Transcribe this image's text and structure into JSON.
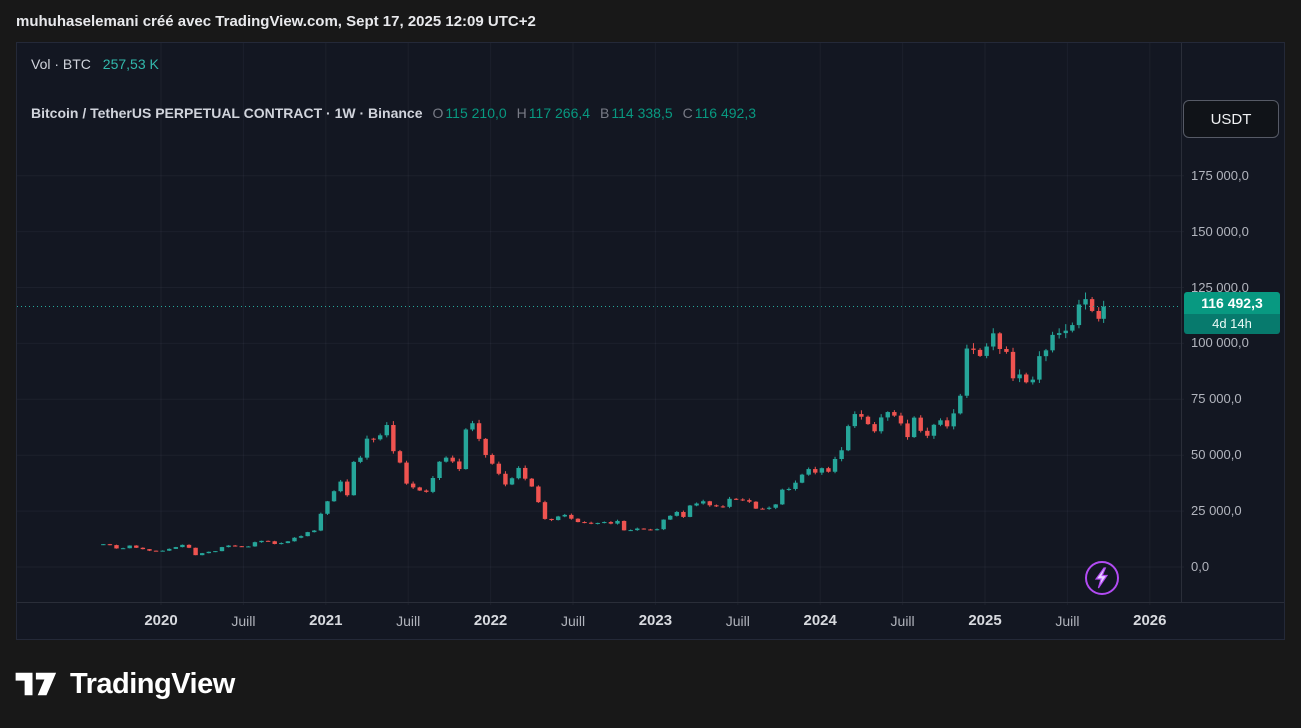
{
  "colors": {
    "up": "#26a69a",
    "down": "#ef5350",
    "accent_teal": "#089981",
    "panel_bg": "#131722",
    "outer_bg": "#181818",
    "axis_text": "#b2b5be",
    "volume_value": "#32b8ac",
    "badge": "#089981",
    "boost_purple": "#b24bf3"
  },
  "header": {
    "caption": "muhuhaselemani créé avec TradingView.com, Sept 17, 2025 12:09 UTC+2"
  },
  "legend": {
    "volume_label": "Vol · BTC",
    "volume_value": "257,53 K",
    "symbol_title": "Bitcoin / TetherUS PERPETUAL CONTRACT · 1W · Binance",
    "ohlc": [
      {
        "key": "O",
        "value": "115 210,0"
      },
      {
        "key": "H",
        "value": "117 266,4"
      },
      {
        "key": "B",
        "value": "114 338,5"
      },
      {
        "key": "C",
        "value": "116 492,3"
      }
    ]
  },
  "currency_button": {
    "label": "USDT"
  },
  "price_badge": {
    "price": "116 492,3",
    "countdown": "4d 14h"
  },
  "price_axis": {
    "labels": [
      {
        "label": "175 000,0",
        "value": 175000
      },
      {
        "label": "150 000,0",
        "value": 150000
      },
      {
        "label": "125 000,0",
        "value": 125000
      },
      {
        "label": "100 000,0",
        "value": 100000
      },
      {
        "label": "75 000,0",
        "value": 75000
      },
      {
        "label": "50 000,0",
        "value": 50000
      },
      {
        "label": "25 000,0",
        "value": 25000
      },
      {
        "label": "0,0",
        "value": 0
      }
    ]
  },
  "time_axis": {
    "ticks": [
      {
        "label": "2020",
        "t": 2020,
        "major": true
      },
      {
        "label": "Juill",
        "t": 2020.5,
        "major": false
      },
      {
        "label": "2021",
        "t": 2021,
        "major": true
      },
      {
        "label": "Juill",
        "t": 2021.5,
        "major": false
      },
      {
        "label": "2022",
        "t": 2022,
        "major": true
      },
      {
        "label": "Juill",
        "t": 2022.5,
        "major": false
      },
      {
        "label": "2023",
        "t": 2023,
        "major": true
      },
      {
        "label": "Juill",
        "t": 2023.5,
        "major": false
      },
      {
        "label": "2024",
        "t": 2024,
        "major": true
      },
      {
        "label": "Juill",
        "t": 2024.5,
        "major": false
      },
      {
        "label": "2025",
        "t": 2025,
        "major": true
      },
      {
        "label": "Juill",
        "t": 2025.5,
        "major": false
      },
      {
        "label": "2026",
        "t": 2026,
        "major": true
      }
    ]
  },
  "footer": {
    "brand": "TradingView"
  },
  "chart_data": {
    "type": "candlestick",
    "title": "Bitcoin / TetherUS PERPETUAL CONTRACT",
    "interval": "1W",
    "exchange": "Binance",
    "quote_currency": "USDT",
    "up_color": "#26a69a",
    "down_color": "#ef5350",
    "last": {
      "open": 115210.0,
      "high": 117266.4,
      "low": 114338.5,
      "close": 116492.3
    },
    "volume_display": "257,53 K",
    "countdown": "4d 14h",
    "x_domain_years": [
      2019.6,
      2026.1
    ],
    "y_ticks": [
      0,
      25000,
      50000,
      75000,
      100000,
      125000,
      150000,
      175000
    ],
    "ylim": [
      -17000,
      192000
    ],
    "points_format": "[year_fraction, close_USDT] — bi-weekly closes estimated from chart",
    "points": [
      [
        2019.65,
        10200
      ],
      [
        2019.69,
        9800
      ],
      [
        2019.73,
        8300
      ],
      [
        2019.77,
        8400
      ],
      [
        2019.81,
        9600
      ],
      [
        2019.85,
        8600
      ],
      [
        2019.89,
        8000
      ],
      [
        2019.93,
        7300
      ],
      [
        2019.97,
        7200
      ],
      [
        2020.01,
        7300
      ],
      [
        2020.05,
        8100
      ],
      [
        2020.09,
        8900
      ],
      [
        2020.13,
        9900
      ],
      [
        2020.17,
        8600
      ],
      [
        2020.21,
        5300
      ],
      [
        2020.25,
        6200
      ],
      [
        2020.29,
        6800
      ],
      [
        2020.33,
        7100
      ],
      [
        2020.37,
        8900
      ],
      [
        2020.41,
        9600
      ],
      [
        2020.45,
        9300
      ],
      [
        2020.49,
        9100
      ],
      [
        2020.53,
        9200
      ],
      [
        2020.57,
        11100
      ],
      [
        2020.61,
        11700
      ],
      [
        2020.65,
        11500
      ],
      [
        2020.69,
        10300
      ],
      [
        2020.73,
        10700
      ],
      [
        2020.77,
        11500
      ],
      [
        2020.81,
        13100
      ],
      [
        2020.85,
        13800
      ],
      [
        2020.89,
        15600
      ],
      [
        2020.93,
        16300
      ],
      [
        2020.97,
        23800
      ],
      [
        2021.01,
        29400
      ],
      [
        2021.05,
        33900
      ],
      [
        2021.09,
        38200
      ],
      [
        2021.13,
        32100
      ],
      [
        2021.17,
        47000
      ],
      [
        2021.21,
        48900
      ],
      [
        2021.25,
        57400
      ],
      [
        2021.29,
        57100
      ],
      [
        2021.33,
        58900
      ],
      [
        2021.37,
        63500
      ],
      [
        2021.41,
        51800
      ],
      [
        2021.45,
        46700
      ],
      [
        2021.49,
        37300
      ],
      [
        2021.53,
        35600
      ],
      [
        2021.57,
        34200
      ],
      [
        2021.61,
        33600
      ],
      [
        2021.65,
        39800
      ],
      [
        2021.69,
        47100
      ],
      [
        2021.73,
        48900
      ],
      [
        2021.77,
        47200
      ],
      [
        2021.81,
        43800
      ],
      [
        2021.85,
        61500
      ],
      [
        2021.89,
        64300
      ],
      [
        2021.93,
        57300
      ],
      [
        2021.97,
        50100
      ],
      [
        2022.01,
        46200
      ],
      [
        2022.05,
        41700
      ],
      [
        2022.09,
        36900
      ],
      [
        2022.13,
        39700
      ],
      [
        2022.17,
        44300
      ],
      [
        2022.21,
        39500
      ],
      [
        2022.25,
        36000
      ],
      [
        2022.29,
        29000
      ],
      [
        2022.33,
        21500
      ],
      [
        2022.37,
        21000
      ],
      [
        2022.41,
        22600
      ],
      [
        2022.45,
        23300
      ],
      [
        2022.49,
        21600
      ],
      [
        2022.53,
        20100
      ],
      [
        2022.57,
        19800
      ],
      [
        2022.61,
        19500
      ],
      [
        2022.65,
        19700
      ],
      [
        2022.69,
        20100
      ],
      [
        2022.73,
        19400
      ],
      [
        2022.77,
        20600
      ],
      [
        2022.81,
        16400
      ],
      [
        2022.85,
        16500
      ],
      [
        2022.89,
        17200
      ],
      [
        2022.93,
        16800
      ],
      [
        2022.97,
        16600
      ],
      [
        2023.01,
        16900
      ],
      [
        2023.05,
        21200
      ],
      [
        2023.09,
        22900
      ],
      [
        2023.13,
        24600
      ],
      [
        2023.17,
        22400
      ],
      [
        2023.21,
        27500
      ],
      [
        2023.25,
        28400
      ],
      [
        2023.29,
        29400
      ],
      [
        2023.33,
        27600
      ],
      [
        2023.37,
        27100
      ],
      [
        2023.41,
        26900
      ],
      [
        2023.45,
        30500
      ],
      [
        2023.49,
        30200
      ],
      [
        2023.53,
        29900
      ],
      [
        2023.57,
        29200
      ],
      [
        2023.61,
        26100
      ],
      [
        2023.65,
        26000
      ],
      [
        2023.69,
        26500
      ],
      [
        2023.73,
        28000
      ],
      [
        2023.77,
        34600
      ],
      [
        2023.81,
        34900
      ],
      [
        2023.85,
        37700
      ],
      [
        2023.89,
        41300
      ],
      [
        2023.93,
        43800
      ],
      [
        2023.97,
        42200
      ],
      [
        2024.01,
        44200
      ],
      [
        2024.05,
        42600
      ],
      [
        2024.09,
        48300
      ],
      [
        2024.13,
        52200
      ],
      [
        2024.17,
        63000
      ],
      [
        2024.21,
        68400
      ],
      [
        2024.25,
        67200
      ],
      [
        2024.29,
        63900
      ],
      [
        2024.33,
        60700
      ],
      [
        2024.37,
        66900
      ],
      [
        2024.41,
        69300
      ],
      [
        2024.45,
        67700
      ],
      [
        2024.49,
        64200
      ],
      [
        2024.53,
        58100
      ],
      [
        2024.57,
        66800
      ],
      [
        2024.61,
        60900
      ],
      [
        2024.65,
        58700
      ],
      [
        2024.69,
        63600
      ],
      [
        2024.73,
        65600
      ],
      [
        2024.77,
        62900
      ],
      [
        2024.81,
        68700
      ],
      [
        2024.85,
        76600
      ],
      [
        2024.89,
        97700
      ],
      [
        2024.93,
        97100
      ],
      [
        2024.97,
        94400
      ],
      [
        2025.01,
        98600
      ],
      [
        2025.05,
        104500
      ],
      [
        2025.09,
        97500
      ],
      [
        2025.13,
        96200
      ],
      [
        2025.17,
        84400
      ],
      [
        2025.21,
        86100
      ],
      [
        2025.25,
        82600
      ],
      [
        2025.29,
        83800
      ],
      [
        2025.33,
        94300
      ],
      [
        2025.37,
        96900
      ],
      [
        2025.41,
        103800
      ],
      [
        2025.45,
        104600
      ],
      [
        2025.49,
        105700
      ],
      [
        2025.53,
        108200
      ],
      [
        2025.57,
        117400
      ],
      [
        2025.61,
        119800
      ],
      [
        2025.65,
        114500
      ],
      [
        2025.69,
        111000
      ],
      [
        2025.72,
        116492.3
      ]
    ]
  }
}
